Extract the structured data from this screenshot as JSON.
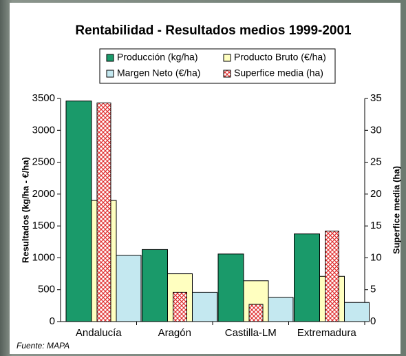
{
  "chart_data": {
    "type": "bar",
    "title": "Rentabilidad - Resultados medios 1999-2001",
    "y_label": "Resultados (kg/ha - €/ha)",
    "y2_label": "Superfice media (ha)",
    "categories": [
      "Andalucía",
      "Aragón",
      "Castilla-LM",
      "Extremadura"
    ],
    "series": [
      {
        "name": "Producción (kg/ha)",
        "color": "#1a9a6a",
        "values": [
          3460,
          1130,
          1060,
          1375
        ]
      },
      {
        "name": "Producto Bruto (€/ha)",
        "color": "#ffffc0",
        "values": [
          1900,
          750,
          640,
          710
        ]
      },
      {
        "name": "Margen Neto (€/ha)",
        "color": "#c4e8f0",
        "values": [
          1040,
          460,
          380,
          300
        ]
      },
      {
        "name": "Superfice media (ha)",
        "color": "#e03030",
        "axis": "y2",
        "values": [
          34.3,
          4.6,
          2.7,
          14.2
        ]
      }
    ],
    "ylim": [
      0,
      3500
    ],
    "yticks": [
      0,
      500,
      1000,
      1500,
      2000,
      2500,
      3000,
      3500
    ],
    "y2lim": [
      0,
      35
    ],
    "y2ticks": [
      0,
      5,
      10,
      15,
      20,
      25,
      30,
      35
    ],
    "source": "Fuente: MAPA"
  }
}
